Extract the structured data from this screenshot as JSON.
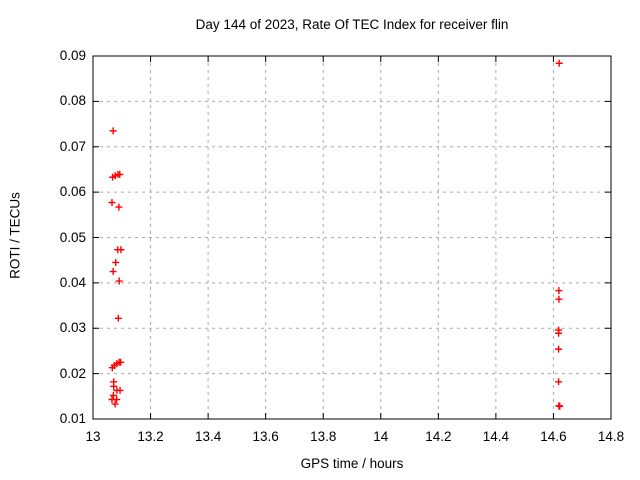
{
  "figure": {
    "background_color": "#ffffff",
    "border_color": "#000000",
    "text_color": "#000000"
  },
  "chart_data": {
    "type": "scatter",
    "title": "Day 144 of 2023, Rate Of TEC Index for receiver flin",
    "xlabel": "GPS time / hours",
    "ylabel": "ROTI / TECUs",
    "xlim": [
      13,
      14.8
    ],
    "ylim": [
      0.01,
      0.09
    ],
    "xticks": {
      "values": [
        13,
        13.2,
        13.4,
        13.6,
        13.8,
        14,
        14.2,
        14.4,
        14.6,
        14.8
      ],
      "labels": [
        "13",
        "13.2",
        "13.4",
        "13.6",
        "13.8",
        "14",
        "14.2",
        "14.4",
        "14.6",
        "14.8"
      ]
    },
    "yticks": {
      "values": [
        0.01,
        0.02,
        0.03,
        0.04,
        0.05,
        0.06,
        0.07,
        0.08,
        0.09
      ],
      "labels": [
        "0.01",
        "0.02",
        "0.03",
        "0.04",
        "0.05",
        "0.06",
        "0.07",
        "0.08",
        "0.09"
      ]
    },
    "grid": {
      "visible": true,
      "style": "dashed",
      "color": "#aaaaaa"
    },
    "legend": {
      "visible": false
    },
    "series": [
      {
        "name": "ROTI",
        "marker": "plus",
        "color": "#ff0000",
        "points": [
          [
            13.07,
            0.0735
          ],
          [
            13.068,
            0.0633
          ],
          [
            13.077,
            0.0636
          ],
          [
            13.087,
            0.0639
          ],
          [
            13.093,
            0.0639
          ],
          [
            13.066,
            0.0577
          ],
          [
            13.09,
            0.0567
          ],
          [
            13.086,
            0.0473
          ],
          [
            13.097,
            0.0473
          ],
          [
            13.079,
            0.0445
          ],
          [
            13.07,
            0.0425
          ],
          [
            13.091,
            0.0404
          ],
          [
            13.088,
            0.0322
          ],
          [
            13.067,
            0.0213
          ],
          [
            13.074,
            0.0218
          ],
          [
            13.083,
            0.0222
          ],
          [
            13.091,
            0.0225
          ],
          [
            13.096,
            0.0225
          ],
          [
            13.072,
            0.0182
          ],
          [
            13.072,
            0.0172
          ],
          [
            13.083,
            0.0163
          ],
          [
            13.094,
            0.0163
          ],
          [
            13.071,
            0.0152
          ],
          [
            13.066,
            0.0143
          ],
          [
            13.082,
            0.0143
          ],
          [
            13.077,
            0.0133
          ],
          [
            14.62,
            0.0884
          ],
          [
            14.619,
            0.0383
          ],
          [
            14.619,
            0.0364
          ],
          [
            14.618,
            0.0296
          ],
          [
            14.618,
            0.0289
          ],
          [
            14.618,
            0.0254
          ],
          [
            14.618,
            0.0182
          ],
          [
            14.619,
            0.0129
          ],
          [
            14.622,
            0.0128
          ]
        ]
      }
    ]
  }
}
